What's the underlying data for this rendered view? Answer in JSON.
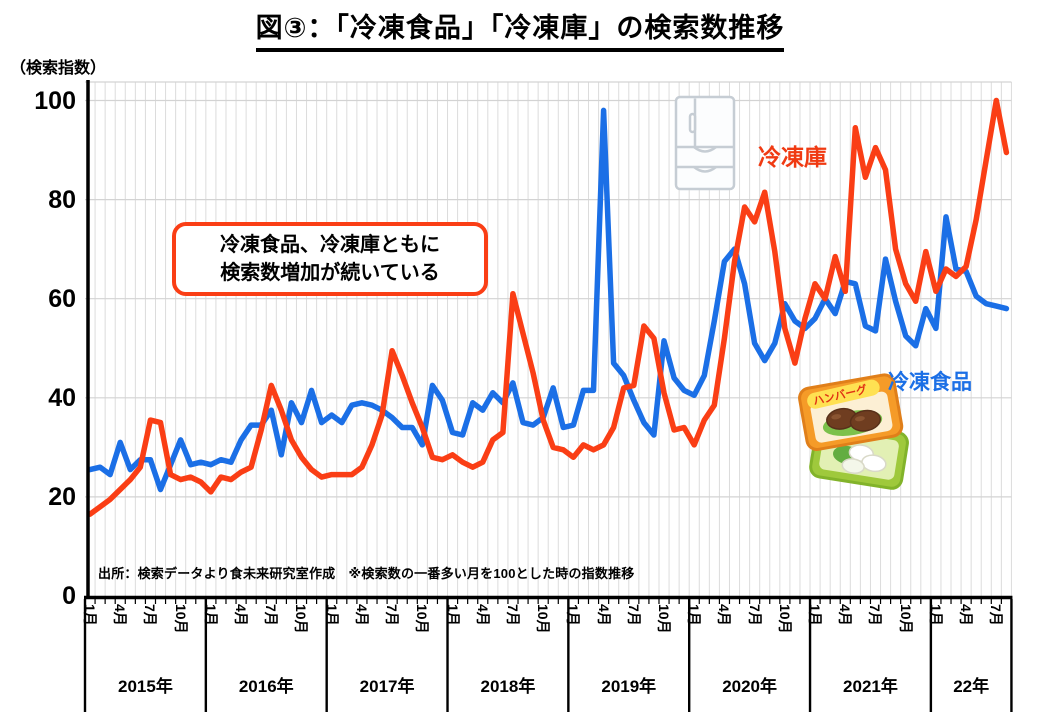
{
  "title": "図③：「冷凍食品」「冷凍庫」の検索数推移",
  "y_axis": {
    "unit_label": "（検索指数）",
    "ticks": [
      100,
      80,
      60,
      40,
      20,
      0
    ]
  },
  "x_axis": {
    "years": [
      {
        "label": "2015年",
        "months": [
          "1月",
          "4月",
          "7月",
          "10月"
        ]
      },
      {
        "label": "2016年",
        "months": [
          "1月",
          "4月",
          "7月",
          "10月"
        ]
      },
      {
        "label": "2017年",
        "months": [
          "1月",
          "4月",
          "7月",
          "10月"
        ]
      },
      {
        "label": "2018年",
        "months": [
          "1月",
          "4月",
          "7月",
          "10月"
        ]
      },
      {
        "label": "2019年",
        "months": [
          "1月",
          "4月",
          "7月",
          "10月"
        ]
      },
      {
        "label": "2020年",
        "months": [
          "1月",
          "4月",
          "7月",
          "10月"
        ]
      },
      {
        "label": "2021年",
        "months": [
          "1月",
          "4月",
          "7月",
          "10月"
        ]
      },
      {
        "label": "22年",
        "months": [
          "1月",
          "4月",
          "7月"
        ]
      }
    ]
  },
  "annotation": {
    "line1": "冷凍食品、冷凍庫ともに",
    "line2": "検索数増加が続いている"
  },
  "series_labels": {
    "freezer": "冷凍庫",
    "frozen_food": "冷凍食品"
  },
  "source_note": "出所：検索データより食未来研究室作成　※検索数の一番多い月を100とした時の指数推移",
  "package_text": "ハンバーグ",
  "colors": {
    "frozen_food_line": "#1b6fe6",
    "freezer_line": "#fa3e15",
    "grid_vertical": "#dcdcdc",
    "grid_horizontal": "#d3d3d3",
    "axis": "#000000",
    "annotation_border": "#fa3e15"
  },
  "chart_data": {
    "type": "line",
    "title": "図③：「冷凍食品」「冷凍庫」の検索数推移",
    "ylabel": "検索指数",
    "ylim": [
      0,
      104
    ],
    "y_gridline_interval": 20,
    "x_interval": "monthly",
    "x_start": "2015-01",
    "x_end": "2022-08",
    "year_labels": [
      "2015年",
      "2016年",
      "2017年",
      "2018年",
      "2019年",
      "2020年",
      "2021年",
      "22年"
    ],
    "x_tick_labels_per_year": [
      "1月",
      "4月",
      "7月",
      "10月"
    ],
    "legend_position": "inline-labels",
    "grid": true,
    "series": [
      {
        "name": "冷凍食品",
        "color": "#1b6fe6",
        "values": [
          25.5,
          26,
          24.5,
          31,
          25.5,
          27.5,
          27.5,
          21.5,
          26.5,
          31.5,
          26.5,
          27,
          26.5,
          27.5,
          27,
          31.5,
          34.5,
          34.5,
          37.5,
          28.5,
          39,
          35,
          41.5,
          35,
          36.5,
          35,
          38.5,
          39,
          38.5,
          37.5,
          36,
          34,
          34,
          30.5,
          42.5,
          39.5,
          33,
          32.5,
          39,
          37.5,
          41,
          39,
          43,
          35,
          34.5,
          36,
          42,
          34,
          34.5,
          41.5,
          41.5,
          98,
          47,
          44.5,
          39.5,
          35,
          32.5,
          51.5,
          44,
          41.5,
          40.5,
          44.5,
          55.5,
          67.5,
          70,
          63,
          51,
          47.5,
          51,
          59,
          55.5,
          54,
          56,
          60,
          57,
          63.5,
          63,
          54.5,
          53.5,
          68,
          59.5,
          52.5,
          50.5,
          58,
          54,
          76.5,
          66,
          65.5,
          60.5,
          59,
          58.5,
          58
        ]
      },
      {
        "name": "冷凍庫",
        "color": "#fa3e15",
        "values": [
          16.5,
          18,
          19.5,
          21.5,
          23.5,
          26,
          35.5,
          35,
          24.5,
          23.5,
          24,
          23,
          21,
          24,
          23.5,
          25,
          26,
          33.5,
          42.5,
          37.5,
          31.5,
          28,
          25.5,
          24,
          24.5,
          24.5,
          24.5,
          26,
          30.5,
          36.5,
          49.5,
          44.5,
          39,
          34,
          28,
          27.5,
          28.5,
          27,
          26,
          27,
          31.5,
          33,
          61,
          53,
          45,
          35.5,
          30,
          29.5,
          28,
          30.5,
          29.5,
          30.5,
          34,
          42,
          42.5,
          54.5,
          52,
          41,
          33.5,
          34,
          30.5,
          35.5,
          38.5,
          52,
          67.5,
          78.5,
          75.5,
          81.5,
          69.5,
          54,
          47,
          56,
          63,
          60,
          68.5,
          61.5,
          94.5,
          84.5,
          90.5,
          86,
          70,
          63,
          59.5,
          69.5,
          61.5,
          66,
          64.5,
          66.5,
          76,
          88,
          100,
          89.5
        ]
      }
    ]
  }
}
